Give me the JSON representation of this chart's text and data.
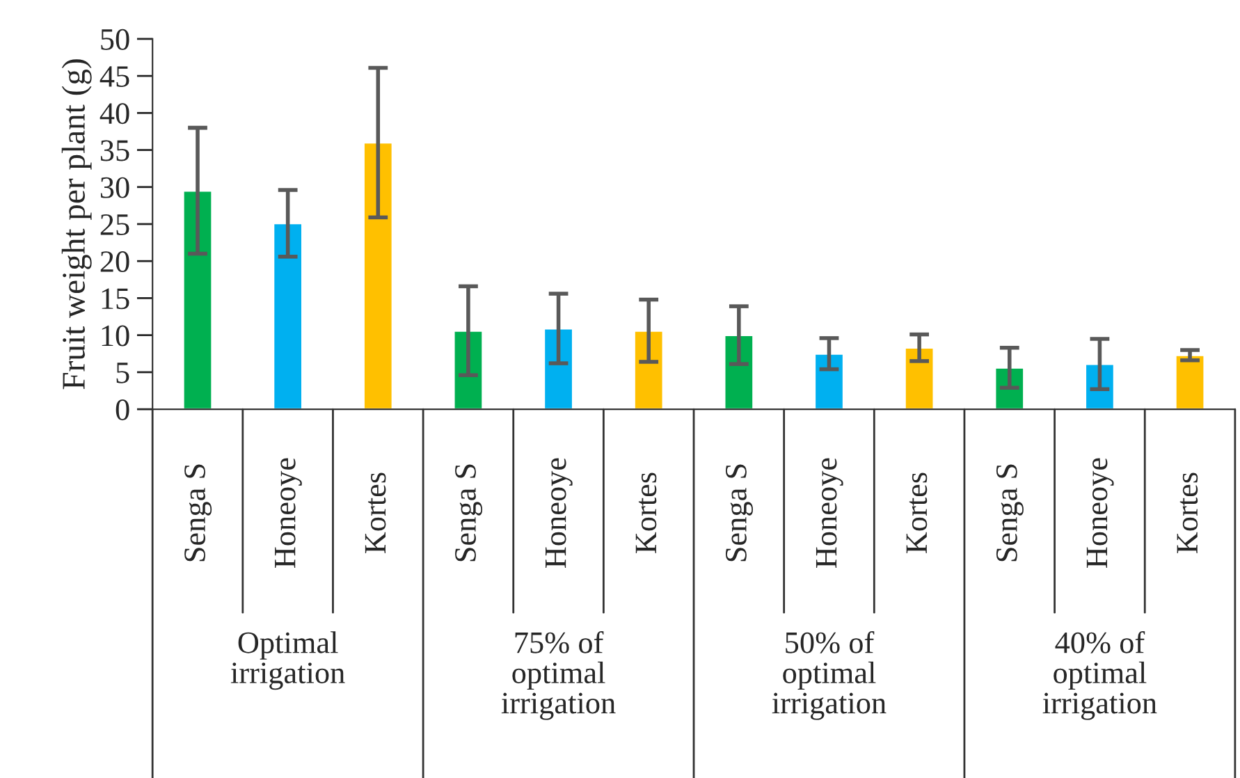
{
  "chart_data": {
    "type": "bar",
    "ylabel": "Fruit weight per plant (g)",
    "categories": [
      "Senga S",
      "Honeoye",
      "Kortes",
      "Senga S",
      "Honeoye",
      "Kortes",
      "Senga S",
      "Honeoye",
      "Kortes",
      "Senga S",
      "Honeoye",
      "Kortes"
    ],
    "values": [
      29.5,
      25.1,
      36.0,
      10.6,
      10.9,
      10.6,
      10.0,
      7.5,
      8.3,
      5.6,
      6.1,
      7.3
    ],
    "errors": [
      8.5,
      4.5,
      10.1,
      6.0,
      4.7,
      4.2,
      3.9,
      2.1,
      1.8,
      2.7,
      3.4,
      0.7
    ],
    "colors": [
      "#00b050",
      "#00b0f0",
      "#ffc000",
      "#00b050",
      "#00b0f0",
      "#ffc000",
      "#00b050",
      "#00b0f0",
      "#ffc000",
      "#00b050",
      "#00b0f0",
      "#ffc000"
    ],
    "annotations": [
      "Optimal\nirrigation",
      "75% of\noptimal\nirrigation",
      "50% of\noptimal\nirrigation",
      "40% of\noptimal\nirrigation"
    ],
    "ylim": [
      0,
      50
    ],
    "yticks": [
      0,
      5,
      10,
      15,
      20,
      25,
      30,
      35,
      40,
      45,
      50
    ],
    "grid": false,
    "legend": false
  }
}
